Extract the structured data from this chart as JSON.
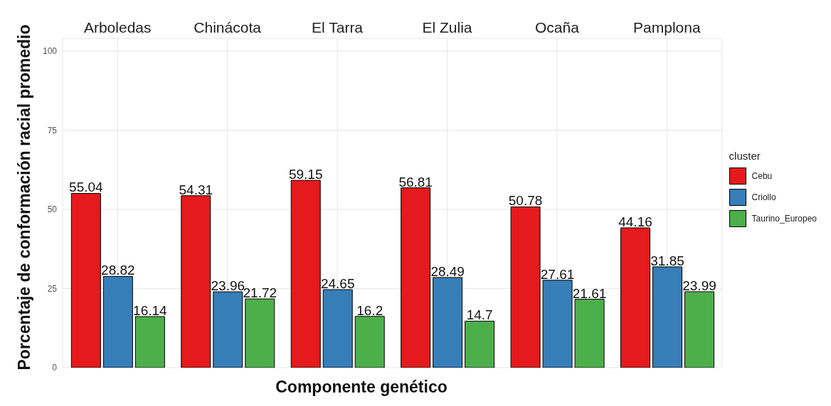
{
  "chart_data": {
    "type": "bar",
    "xlabel": "Componente genético",
    "ylabel": "Porcentaje de conformación racial promedio",
    "legend_title": "cluster",
    "legend": "right",
    "grid": true,
    "data_labels": true,
    "categories": [
      "Arboledas",
      "Chinácota",
      "El Tarra",
      "El Zulia",
      "Ocaña",
      "Pamplona"
    ],
    "ylim": [
      0,
      104
    ],
    "yticks": [
      0,
      25,
      50,
      75,
      100
    ],
    "series": [
      {
        "name": "Cebu",
        "color": "#e41a1c",
        "values": [
          55.04,
          54.31,
          59.15,
          56.81,
          50.78,
          44.16
        ]
      },
      {
        "name": "Criollo",
        "color": "#377eb8",
        "values": [
          28.82,
          23.96,
          24.65,
          28.49,
          27.61,
          31.85
        ]
      },
      {
        "name": "Taurino_Europeo",
        "color": "#4daf4a",
        "values": [
          16.14,
          21.72,
          16.2,
          14.7,
          21.61,
          23.99
        ]
      }
    ]
  }
}
